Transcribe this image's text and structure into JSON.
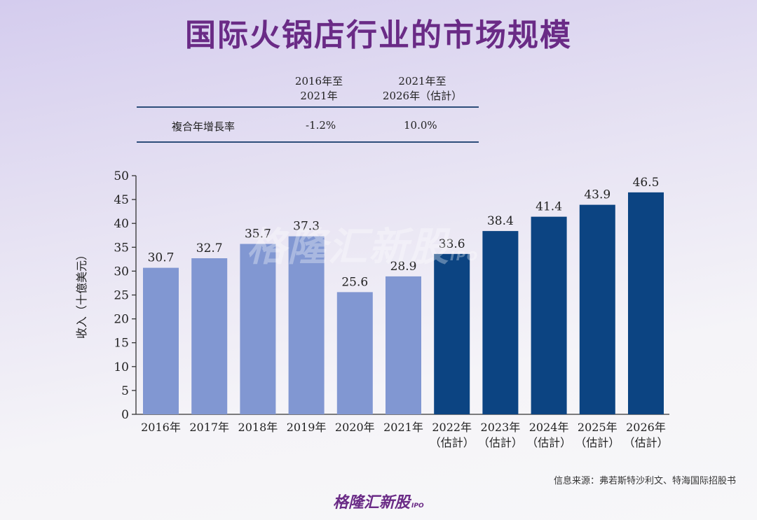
{
  "page_title": "国际火锅店行业的市场规模",
  "cagr_table": {
    "col1_header": "2016年至\n2021年",
    "col2_header": "2021年至\n2026年（估計）",
    "row_label": "複合年增長率",
    "col1_value": "-1.2%",
    "col2_value": "10.0%"
  },
  "source_note": "信息来源：弗若斯特沙利文、特海国际招股书",
  "footer_logo": {
    "text": "格隆汇新股",
    "suffix": "IPO"
  },
  "watermark": {
    "text": "格隆汇新股",
    "suffix": "IPO"
  },
  "colors": {
    "historical": "#8197d2",
    "forecast": "#0c4482",
    "title": "#6a2b86"
  },
  "chart_data": {
    "type": "bar",
    "ylabel": "收入（十億美元）",
    "xlabel": "",
    "ylim": [
      0,
      50
    ],
    "yticks": [
      0,
      5,
      10,
      15,
      20,
      25,
      30,
      35,
      40,
      45,
      50
    ],
    "categories": [
      "2016年",
      "2017年",
      "2018年",
      "2019年",
      "2020年",
      "2021年",
      "2022年\n（估計）",
      "2023年\n（估計）",
      "2024年\n（估計）",
      "2025年\n（估計）",
      "2026年\n（估計）"
    ],
    "values": [
      30.7,
      32.7,
      35.7,
      37.3,
      25.6,
      28.9,
      33.6,
      38.4,
      41.4,
      43.9,
      46.5
    ],
    "forecast": [
      false,
      false,
      false,
      false,
      false,
      false,
      true,
      true,
      true,
      true,
      true
    ]
  }
}
